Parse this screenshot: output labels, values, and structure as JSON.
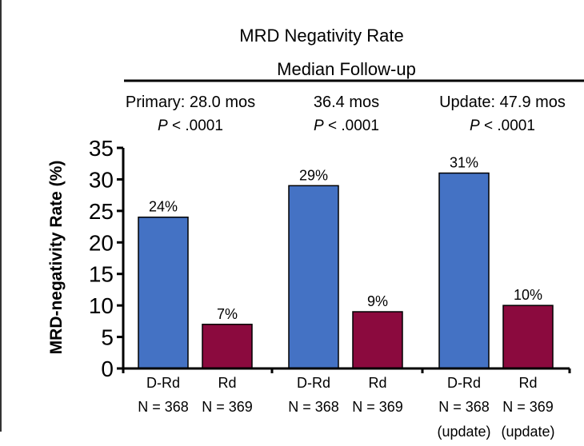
{
  "chart_data": {
    "type": "bar",
    "title": "MRD Negativity Rate",
    "subtitle": "Median Follow-up",
    "ylabel": "MRD-negativity Rate (%)",
    "xlabel": "",
    "ylim": [
      0,
      35
    ],
    "yticks": [
      "0",
      "5",
      "10",
      "15",
      "20",
      "25",
      "30",
      "35"
    ],
    "grid": false,
    "legend": "none",
    "groups": [
      {
        "header": "Primary: 28.0 mos",
        "p_prefix": "P",
        "p_value": " < .0001"
      },
      {
        "header": "36.4 mos",
        "p_prefix": "P",
        "p_value": " < .0001"
      },
      {
        "header": "Update: 47.9 mos",
        "p_prefix": "P",
        "p_value": " < .0001"
      }
    ],
    "bars": [
      {
        "group": 0,
        "arm": "D-Rd",
        "n_label": "N = 368",
        "extra": "",
        "value": 24,
        "label": "24%",
        "color": "#4472C4"
      },
      {
        "group": 0,
        "arm": "Rd",
        "n_label": "N = 369",
        "extra": "",
        "value": 7,
        "label": "7%",
        "color": "#8B0A3E"
      },
      {
        "group": 1,
        "arm": "D-Rd",
        "n_label": "N = 368",
        "extra": "",
        "value": 29,
        "label": "29%",
        "color": "#4472C4"
      },
      {
        "group": 1,
        "arm": "Rd",
        "n_label": "N = 369",
        "extra": "",
        "value": 9,
        "label": "9%",
        "color": "#8B0A3E"
      },
      {
        "group": 2,
        "arm": "D-Rd",
        "n_label": "N = 368",
        "extra": "(update)",
        "value": 31,
        "label": "31%",
        "color": "#4472C4"
      },
      {
        "group": 2,
        "arm": "Rd",
        "n_label": "N = 369",
        "extra": "(update)",
        "value": 10,
        "label": "10%",
        "color": "#8B0A3E"
      }
    ]
  }
}
